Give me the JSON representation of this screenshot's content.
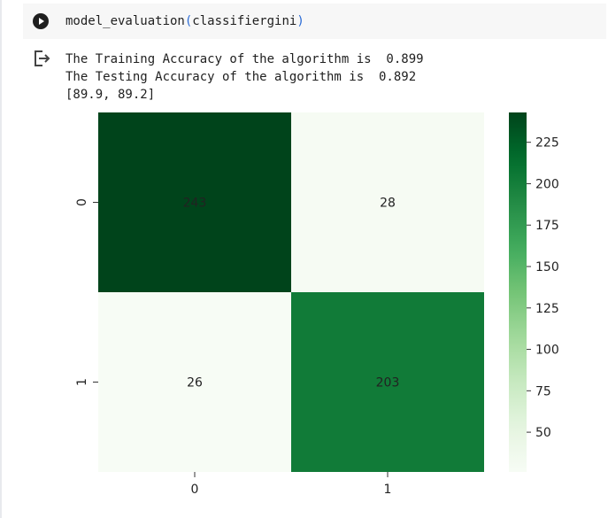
{
  "cell": {
    "code_fn": "model_evaluation",
    "code_open": "(",
    "code_arg": "classifiergini",
    "code_close": ")",
    "run_icon": "play-circle-icon",
    "output_icon": "output-redirect-icon"
  },
  "output": {
    "lines": [
      "The Training Accuracy of the algorithm is  0.899",
      "The Testing Accuracy of the algorithm is  0.892",
      "[89.9, 89.2]"
    ]
  },
  "chart_data": {
    "type": "heatmap",
    "x_categories": [
      "0",
      "1"
    ],
    "y_categories": [
      "0",
      "1"
    ],
    "values": [
      [
        243,
        28
      ],
      [
        26,
        203
      ]
    ],
    "colormap": "Greens",
    "colorbar": {
      "range": [
        26,
        243
      ],
      "ticks": [
        50,
        75,
        100,
        125,
        150,
        175,
        200,
        225
      ]
    },
    "annotations": true,
    "title": "",
    "xlabel": "",
    "ylabel": ""
  }
}
